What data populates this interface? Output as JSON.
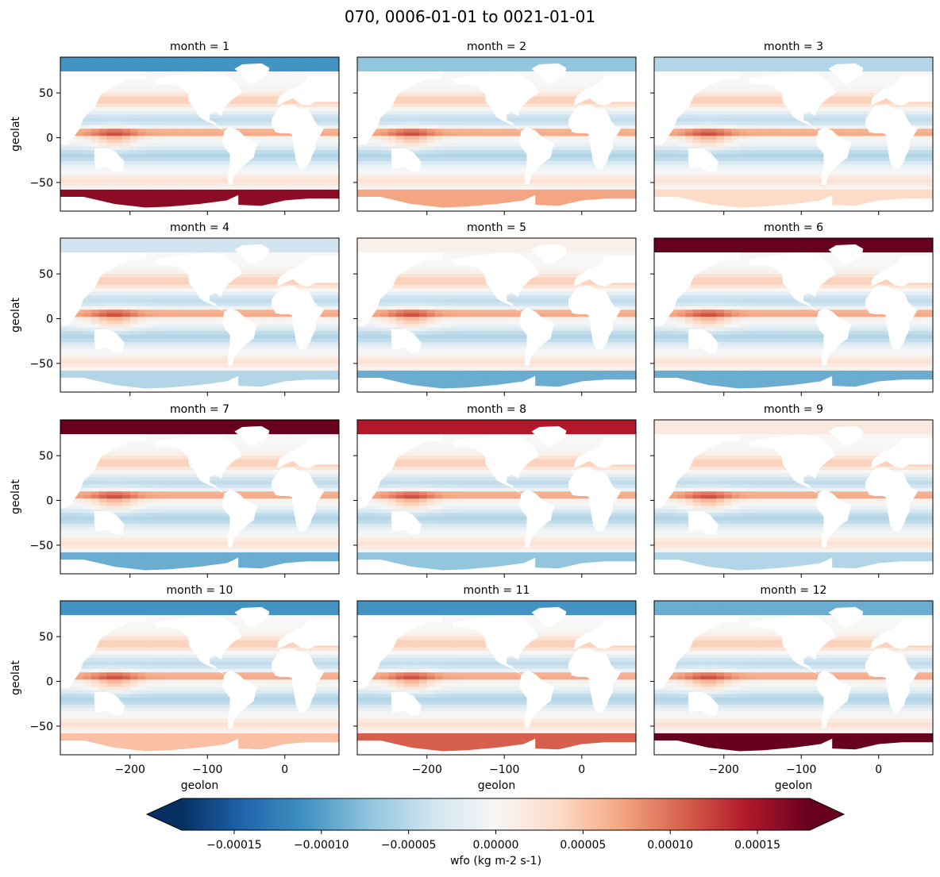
{
  "chart_data": {
    "type": "heatmap",
    "title": "070, 0006-01-01 to 0021-01-01",
    "variable": "wfo",
    "xlabel": "geolon",
    "ylabel": "geolat",
    "xlim": [
      -290,
      70
    ],
    "ylim": [
      -82,
      90
    ],
    "xticks": [
      -200,
      -100,
      0
    ],
    "xtick_labels": [
      "−200",
      "−100",
      "0"
    ],
    "yticks": [
      -50,
      0,
      50
    ],
    "ytick_labels": [
      "−50",
      "0",
      "50"
    ],
    "colormap": "RdBu_r",
    "colorbar": {
      "label": "wfo (kg m-2 s-1)",
      "vmin": -0.00018,
      "vmax": 0.00018,
      "extend": "both",
      "ticks": [
        -0.00015,
        -0.0001,
        -5e-05,
        0.0,
        5e-05,
        0.0001,
        0.00015
      ],
      "tick_labels": [
        "−0.00015",
        "−0.00010",
        "−0.00005",
        "0.00000",
        "0.00005",
        "0.00010",
        "0.00015"
      ]
    },
    "panels": [
      {
        "label": "month = 1",
        "month": 1,
        "arctic": -0.6,
        "southern": 0.9
      },
      {
        "label": "month = 2",
        "month": 2,
        "arctic": -0.4,
        "southern": 0.4
      },
      {
        "label": "month = 3",
        "month": 3,
        "arctic": -0.3,
        "southern": 0.2
      },
      {
        "label": "month = 4",
        "month": 4,
        "arctic": -0.2,
        "southern": -0.3
      },
      {
        "label": "month = 5",
        "month": 5,
        "arctic": 0.05,
        "southern": -0.5
      },
      {
        "label": "month = 6",
        "month": 6,
        "arctic": 1.0,
        "southern": -0.5
      },
      {
        "label": "month = 7",
        "month": 7,
        "arctic": 1.0,
        "southern": -0.5
      },
      {
        "label": "month = 8",
        "month": 8,
        "arctic": 0.8,
        "southern": -0.4
      },
      {
        "label": "month = 9",
        "month": 9,
        "arctic": 0.1,
        "southern": -0.3
      },
      {
        "label": "month = 10",
        "month": 10,
        "arctic": -0.6,
        "southern": 0.3
      },
      {
        "label": "month = 11",
        "month": 11,
        "arctic": -0.6,
        "southern": 0.6
      },
      {
        "label": "month = 12",
        "month": 12,
        "arctic": -0.5,
        "southern": 1.0
      }
    ]
  },
  "colors": {
    "cmap_stops": [
      "#053061",
      "#2166ac",
      "#4393c3",
      "#92c5de",
      "#d1e5f0",
      "#f7f7f7",
      "#fddbc7",
      "#f4a582",
      "#d6604d",
      "#b2182b",
      "#67001f"
    ],
    "land": "#ffffff",
    "frame": "#000000"
  }
}
